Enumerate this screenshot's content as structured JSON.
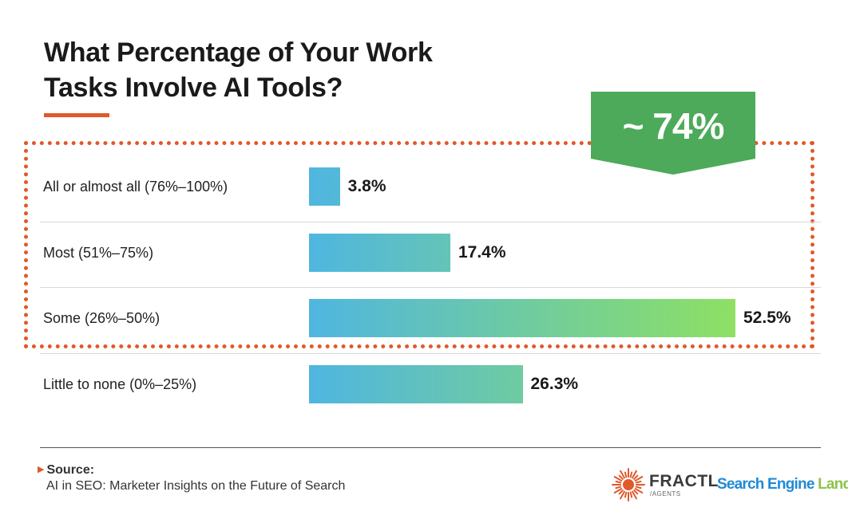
{
  "title": {
    "line1": "What Percentage of Your Work",
    "line2": "Tasks Involve AI Tools?"
  },
  "callout": {
    "text": "~ 74%",
    "color": "#4caa5a"
  },
  "colors": {
    "accent": "#e0592a",
    "bar_start": "#4fb6e0",
    "bar_end": "#8ee063"
  },
  "chart_data": {
    "type": "bar",
    "orientation": "horizontal",
    "categories": [
      "All or almost all (76%–100%)",
      "Most (51%–75%)",
      "Some (26%–50%)",
      "Little to none (0%–25%)"
    ],
    "values": [
      3.8,
      17.4,
      52.5,
      26.3
    ],
    "value_labels": [
      "3.8%",
      "17.4%",
      "52.5%",
      "26.3%"
    ],
    "title": "What Percentage of Your Work Tasks Involve AI Tools?",
    "xlim": [
      0,
      52.5
    ],
    "grid": false,
    "highlight": {
      "categories_grouped": 3,
      "label": "~ 74%"
    }
  },
  "source": {
    "heading": "Source:",
    "text": "AI in SEO: Marketer Insights on the Future of Search"
  },
  "logos": {
    "fractl": {
      "name": "FRACTL",
      "sub": "/AGENTS"
    },
    "sel": {
      "part1": "Search Engine",
      "part2": " Land"
    }
  }
}
